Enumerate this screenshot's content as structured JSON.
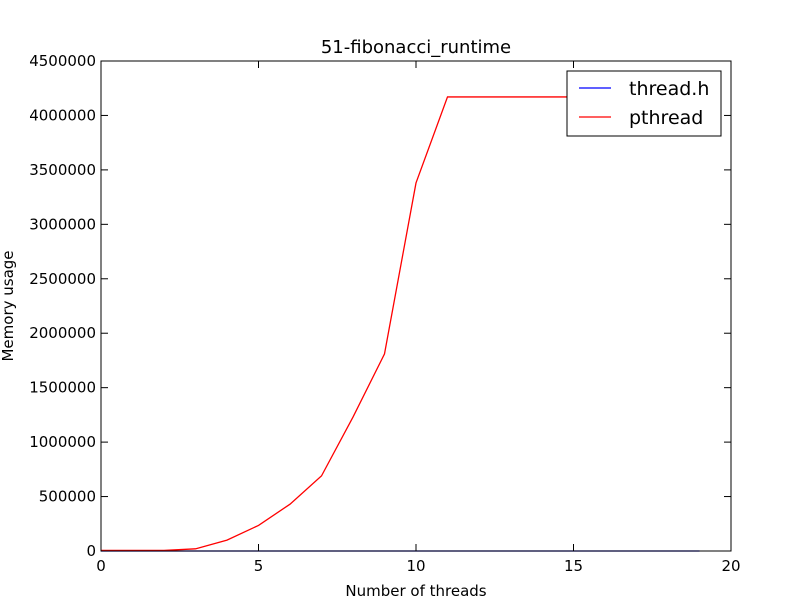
{
  "chart_data": {
    "type": "line",
    "title": "51-fibonacci_runtime",
    "xlabel": "Number of threads",
    "ylabel": "Memory usage",
    "xlim": [
      0,
      20
    ],
    "ylim": [
      0,
      4500000
    ],
    "xticks": [
      0,
      5,
      10,
      15,
      20
    ],
    "xtick_labels": [
      "0",
      "5",
      "10",
      "15",
      "20"
    ],
    "yticks": [
      0,
      500000,
      1000000,
      1500000,
      2000000,
      2500000,
      3000000,
      3500000,
      4000000,
      4500000
    ],
    "ytick_labels": [
      "0",
      "500000",
      "1000000",
      "1500000",
      "2000000",
      "2500000",
      "3000000",
      "3500000",
      "4000000",
      "4500000"
    ],
    "grid": false,
    "legend_position": "top-right",
    "x": [
      0,
      1,
      2,
      3,
      4,
      5,
      6,
      7,
      8,
      9,
      10,
      11,
      12,
      13,
      14,
      15,
      16,
      17,
      18,
      19
    ],
    "series": [
      {
        "name": "thread.h",
        "color": "#0000ff",
        "values": [
          0,
          0,
          0,
          0,
          0,
          0,
          0,
          0,
          0,
          0,
          0,
          0,
          0,
          0,
          0,
          0,
          0,
          0,
          0,
          0
        ]
      },
      {
        "name": "pthread",
        "color": "#ff0000",
        "values": [
          5000,
          5000,
          5000,
          20000,
          100000,
          235000,
          430000,
          690000,
          1230000,
          1810000,
          3380000,
          4170000,
          4170000,
          4170000,
          4170000,
          4170000,
          4170000,
          4170000,
          4170000,
          4170000
        ]
      }
    ]
  }
}
